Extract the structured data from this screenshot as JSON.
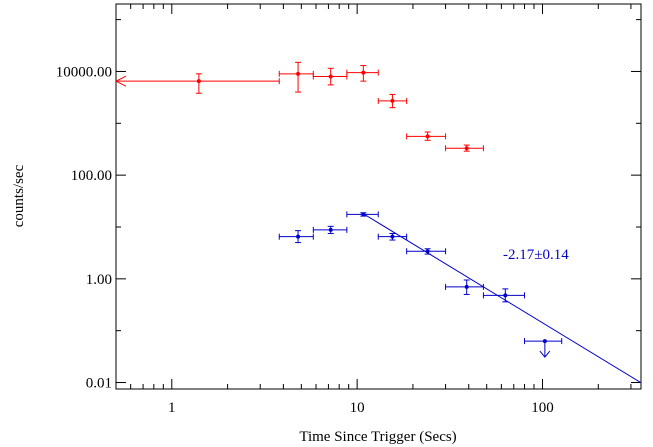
{
  "chart_data": {
    "type": "scatter",
    "xlabel": "Time Since Trigger (Secs)",
    "ylabel": "counts/sec",
    "x_scale": "log",
    "y_scale": "log",
    "xlim": [
      0.5,
      340
    ],
    "ylim": [
      0.0075,
      200000
    ],
    "x_tick_labels": [
      "1",
      "10",
      "100"
    ],
    "y_tick_labels": [
      "0.01",
      "1.00",
      "100.00",
      "10000.00"
    ],
    "series": [
      {
        "color": "#ff0000",
        "points": [
          {
            "x": 1.4,
            "xlo": 0.5,
            "xhi": 3.8,
            "y": 6500,
            "ylo": 3800,
            "yhi": 9000,
            "x_lower_limit": true
          },
          {
            "x": 4.8,
            "xlo": 3.8,
            "xhi": 5.8,
            "y": 9000,
            "ylo": 4000,
            "yhi": 15000
          },
          {
            "x": 7.2,
            "xlo": 5.8,
            "xhi": 8.8,
            "y": 8000,
            "ylo": 5500,
            "yhi": 11500
          },
          {
            "x": 10.8,
            "xlo": 8.8,
            "xhi": 13.0,
            "y": 9500,
            "ylo": 6500,
            "yhi": 13000
          },
          {
            "x": 15.5,
            "xlo": 13.0,
            "xhi": 18.5,
            "y": 2700,
            "ylo": 2000,
            "yhi": 3600
          },
          {
            "x": 24.0,
            "xlo": 18.5,
            "xhi": 30.0,
            "y": 560,
            "ylo": 470,
            "yhi": 680
          },
          {
            "x": 39.0,
            "xlo": 30.0,
            "xhi": 48.0,
            "y": 330,
            "ylo": 290,
            "yhi": 380
          }
        ]
      },
      {
        "color": "#0000cc",
        "points": [
          {
            "x": 4.8,
            "xlo": 3.8,
            "xhi": 5.8,
            "y": 6.5,
            "ylo": 5.0,
            "yhi": 8.5
          },
          {
            "x": 7.2,
            "xlo": 5.8,
            "xhi": 8.8,
            "y": 8.8,
            "ylo": 7.5,
            "yhi": 10.3
          },
          {
            "x": 10.8,
            "xlo": 8.8,
            "xhi": 13.0,
            "y": 17.5,
            "ylo": 16.2,
            "yhi": 18.8
          },
          {
            "x": 15.5,
            "xlo": 13.0,
            "xhi": 18.5,
            "y": 6.5,
            "ylo": 5.6,
            "yhi": 7.5
          },
          {
            "x": 24.0,
            "xlo": 18.5,
            "xhi": 30.0,
            "y": 3.4,
            "ylo": 3.0,
            "yhi": 3.8
          },
          {
            "x": 39.0,
            "xlo": 30.0,
            "xhi": 48.0,
            "y": 0.7,
            "ylo": 0.5,
            "yhi": 0.95
          },
          {
            "x": 63.0,
            "xlo": 48.0,
            "xhi": 80.0,
            "y": 0.48,
            "ylo": 0.36,
            "yhi": 0.64
          },
          {
            "x": 103.0,
            "xlo": 80.0,
            "xhi": 127.0,
            "y": 0.063,
            "upper_limit": true
          }
        ]
      }
    ],
    "fit_line": {
      "color": "#0000cc",
      "slope": -2.17,
      "points": [
        {
          "x": 10.8,
          "y": 18
        },
        {
          "x": 340,
          "y": 0.0099
        }
      ]
    },
    "annotations": [
      {
        "text": "-2.17±0.14",
        "color": "#0000cc"
      }
    ]
  }
}
